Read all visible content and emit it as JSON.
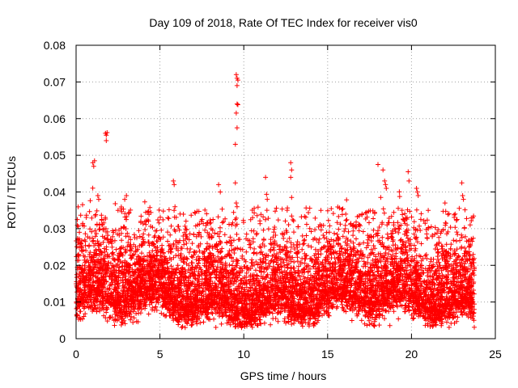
{
  "chart_data": {
    "type": "scatter",
    "title": "Day 109 of 2018, Rate Of TEC Index for receiver vis0",
    "xlabel": "GPS time / hours",
    "ylabel": "ROTI / TECUs",
    "xlim": [
      0,
      25
    ],
    "ylim": [
      0,
      0.08
    ],
    "xticks": [
      0,
      5,
      10,
      15,
      20,
      25
    ],
    "xtick_labels": [
      "0",
      "5",
      "10",
      "15",
      "20",
      "25"
    ],
    "yticks": [
      0,
      0.01,
      0.02,
      0.03,
      0.04,
      0.05,
      0.06,
      0.07,
      0.08
    ],
    "ytick_labels": [
      "0",
      "0.01",
      "0.02",
      "0.03",
      "0.04",
      "0.05",
      "0.06",
      "0.07",
      "0.08"
    ],
    "grid": true,
    "marker": "+",
    "color": "#ff0000",
    "series": [
      {
        "name": "ROTI",
        "points": [
          [
            0.1,
            0.027
          ],
          [
            0.2,
            0.029
          ],
          [
            0.3,
            0.026
          ],
          [
            0.15,
            0.023
          ],
          [
            1.0,
            0.048
          ],
          [
            1.05,
            0.047
          ],
          [
            1.1,
            0.0485
          ],
          [
            1.75,
            0.056
          ],
          [
            1.8,
            0.0555
          ],
          [
            1.85,
            0.0562
          ],
          [
            1.8,
            0.054
          ],
          [
            1.3,
            0.039
          ],
          [
            1.35,
            0.038
          ],
          [
            2.5,
            0.035
          ],
          [
            2.9,
            0.038
          ],
          [
            3.0,
            0.039
          ],
          [
            5.8,
            0.043
          ],
          [
            5.85,
            0.042
          ],
          [
            5.9,
            0.036
          ],
          [
            6.2,
            0.034
          ],
          [
            8.5,
            0.042
          ],
          [
            8.6,
            0.04
          ],
          [
            9.55,
            0.072
          ],
          [
            9.6,
            0.071
          ],
          [
            9.65,
            0.0705
          ],
          [
            9.6,
            0.069
          ],
          [
            9.6,
            0.064
          ],
          [
            9.65,
            0.0638
          ],
          [
            9.55,
            0.0615
          ],
          [
            9.6,
            0.0575
          ],
          [
            9.5,
            0.053
          ],
          [
            9.5,
            0.0425
          ],
          [
            9.55,
            0.037
          ],
          [
            9.6,
            0.036
          ],
          [
            11.3,
            0.044
          ],
          [
            11.4,
            0.038
          ],
          [
            12.8,
            0.048
          ],
          [
            12.85,
            0.046
          ],
          [
            12.8,
            0.044
          ],
          [
            12.85,
            0.0385
          ],
          [
            13.5,
            0.028
          ],
          [
            14.6,
            0.035
          ],
          [
            18.0,
            0.0475
          ],
          [
            18.3,
            0.046
          ],
          [
            18.4,
            0.043
          ],
          [
            18.45,
            0.042
          ],
          [
            18.5,
            0.041
          ],
          [
            19.8,
            0.0455
          ],
          [
            19.85,
            0.043
          ],
          [
            20.3,
            0.041
          ],
          [
            20.35,
            0.04
          ],
          [
            20.4,
            0.039
          ],
          [
            21.0,
            0.035
          ],
          [
            22.0,
            0.037
          ],
          [
            22.6,
            0.034
          ],
          [
            23.0,
            0.0425
          ],
          [
            23.05,
            0.039
          ],
          [
            23.1,
            0.038
          ],
          [
            23.5,
            0.031
          ]
        ]
      }
    ]
  }
}
